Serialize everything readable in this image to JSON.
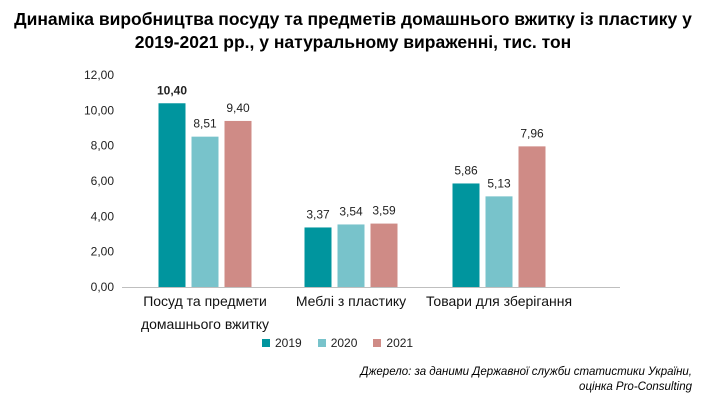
{
  "title_line1": "Динаміка виробництва посуду та предметів домашнього вжитку із пластику у",
  "title_line2": "2019-2021 рр., у натуральному вираженні, тис. тон",
  "source_line1": "Джерело: за даними Державної служби статистики України,",
  "source_line2": "оцінка Pro-Consulting",
  "colors": {
    "2019": "#00959e",
    "2020": "#78c3cb",
    "2021": "#cf8b86"
  },
  "chart_data": {
    "type": "bar",
    "categories": [
      [
        "Посуд та предмети",
        "домашнього вжитку"
      ],
      [
        "Меблі з пластику"
      ],
      [
        "Товари для зберігання"
      ]
    ],
    "series": [
      {
        "name": "2019",
        "values": [
          10.4,
          3.37,
          5.86
        ],
        "labels": [
          "10,40",
          "3,37",
          "5,86"
        ]
      },
      {
        "name": "2020",
        "values": [
          8.51,
          3.54,
          5.13
        ],
        "labels": [
          "8,51",
          "3,54",
          "5,13"
        ]
      },
      {
        "name": "2021",
        "values": [
          9.4,
          3.59,
          7.96
        ],
        "labels": [
          "9,40",
          "3,59",
          "7,96"
        ]
      }
    ],
    "yticks": [
      "0,00",
      "2,00",
      "4,00",
      "6,00",
      "8,00",
      "10,00",
      "12,00"
    ],
    "ylim": [
      0,
      12
    ],
    "grid": false,
    "legend_position": "bottom"
  }
}
